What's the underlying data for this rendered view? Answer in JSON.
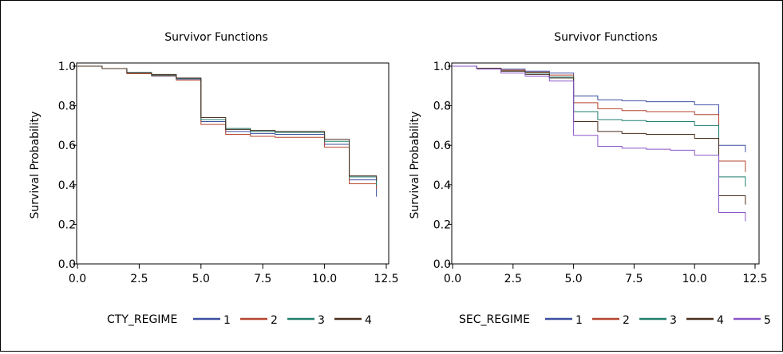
{
  "chart_data": [
    {
      "type": "line",
      "title": "Survivor Functions",
      "xlabel": "",
      "ylabel": "Survival Probability",
      "xlim": [
        0,
        12.5
      ],
      "ylim": [
        0,
        1.0
      ],
      "xticks": [
        "0.0",
        "2.5",
        "5.0",
        "7.5",
        "10.0",
        "12.5"
      ],
      "yticks": [
        "0.0",
        "0.2",
        "0.4",
        "0.6",
        "0.8",
        "1.0"
      ],
      "legend_title": "CTY_REGIME",
      "legend_position": "bottom",
      "grid": false,
      "series": [
        {
          "name": "1",
          "color": "#3b4fa0",
          "x": [
            0,
            1,
            2,
            3,
            4,
            5,
            6,
            7,
            8,
            9,
            10,
            11,
            12.1
          ],
          "y": [
            1.0,
            0.988,
            0.965,
            0.95,
            0.935,
            0.72,
            0.67,
            0.66,
            0.655,
            0.655,
            0.605,
            0.425,
            0.34
          ]
        },
        {
          "name": "2",
          "color": "#b5452e",
          "x": [
            0,
            1,
            2,
            3,
            4,
            5,
            6,
            7,
            8,
            9,
            10,
            11,
            12.1
          ],
          "y": [
            1.0,
            0.988,
            0.962,
            0.952,
            0.93,
            0.705,
            0.655,
            0.645,
            0.64,
            0.64,
            0.59,
            0.405,
            0.38
          ]
        },
        {
          "name": "3",
          "color": "#1f7f6f",
          "x": [
            0,
            1,
            2,
            3,
            4,
            5,
            6,
            7,
            8,
            9,
            10,
            11,
            12.1
          ],
          "y": [
            1.0,
            0.988,
            0.968,
            0.955,
            0.938,
            0.73,
            0.685,
            0.67,
            0.665,
            0.665,
            0.62,
            0.44,
            0.395
          ]
        },
        {
          "name": "4",
          "color": "#4a2f1e",
          "x": [
            0,
            1,
            2,
            3,
            4,
            5,
            6,
            7,
            8,
            9,
            10,
            11,
            12.1
          ],
          "y": [
            1.0,
            0.988,
            0.966,
            0.958,
            0.94,
            0.74,
            0.68,
            0.675,
            0.67,
            0.67,
            0.63,
            0.445,
            0.42
          ]
        }
      ]
    },
    {
      "type": "line",
      "title": "Survivor Functions",
      "xlabel": "",
      "ylabel": "Survival Probability",
      "xlim": [
        0,
        12.5
      ],
      "ylim": [
        0,
        1.0
      ],
      "xticks": [
        "0.0",
        "2.5",
        "5.0",
        "7.5",
        "10.0",
        "12.5"
      ],
      "yticks": [
        "0.0",
        "0.2",
        "0.4",
        "0.6",
        "0.8",
        "1.0"
      ],
      "legend_title": "SEC_REGIME",
      "legend_position": "bottom",
      "grid": false,
      "series": [
        {
          "name": "1",
          "color": "#3b4fa0",
          "x": [
            0,
            1,
            2,
            3,
            4,
            5,
            6,
            7,
            8,
            9,
            10,
            11,
            12.1
          ],
          "y": [
            1.0,
            0.99,
            0.985,
            0.975,
            0.965,
            0.85,
            0.83,
            0.825,
            0.82,
            0.82,
            0.805,
            0.6,
            0.565
          ]
        },
        {
          "name": "2",
          "color": "#b5452e",
          "x": [
            0,
            1,
            2,
            3,
            4,
            5,
            6,
            7,
            8,
            9,
            10,
            11,
            12.1
          ],
          "y": [
            1.0,
            0.99,
            0.98,
            0.97,
            0.955,
            0.815,
            0.785,
            0.775,
            0.77,
            0.77,
            0.755,
            0.52,
            0.465
          ]
        },
        {
          "name": "3",
          "color": "#1f7f6f",
          "x": [
            0,
            1,
            2,
            3,
            4,
            5,
            6,
            7,
            8,
            9,
            10,
            11,
            12.1
          ],
          "y": [
            1.0,
            0.99,
            0.975,
            0.965,
            0.945,
            0.77,
            0.73,
            0.725,
            0.72,
            0.72,
            0.7,
            0.44,
            0.39
          ]
        },
        {
          "name": "4",
          "color": "#4a2f1e",
          "x": [
            0,
            1,
            2,
            3,
            4,
            5,
            6,
            7,
            8,
            9,
            10,
            11,
            12.1
          ],
          "y": [
            1.0,
            0.99,
            0.975,
            0.958,
            0.94,
            0.72,
            0.67,
            0.66,
            0.655,
            0.655,
            0.635,
            0.345,
            0.3
          ]
        },
        {
          "name": "5",
          "color": "#8a55c9",
          "x": [
            0,
            1,
            2,
            3,
            4,
            5,
            6,
            7,
            8,
            9,
            10,
            11,
            12.1
          ],
          "y": [
            1.0,
            0.985,
            0.965,
            0.95,
            0.925,
            0.65,
            0.595,
            0.585,
            0.58,
            0.575,
            0.55,
            0.26,
            0.215
          ]
        }
      ]
    }
  ]
}
